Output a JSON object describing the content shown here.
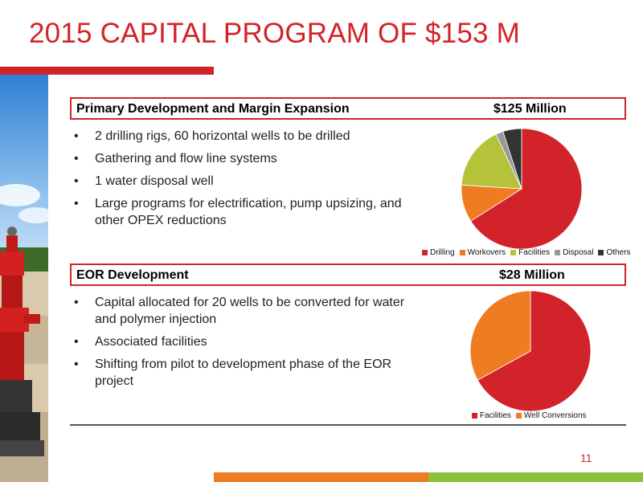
{
  "slide": {
    "title": "2015 CAPITAL PROGRAM OF $153 M",
    "page_number": "11"
  },
  "sections": [
    {
      "title": "Primary Development and Margin Expansion",
      "amount": "$125 Million",
      "bullets": [
        "2 drilling rigs, 60 horizontal wells to be drilled",
        "Gathering and flow line systems",
        "1 water disposal well",
        "Large programs for electrification, pump upsizing, and other OPEX reductions"
      ]
    },
    {
      "title": "EOR Development",
      "amount": "$28 Million",
      "bullets": [
        "Capital allocated for 20 wells to be converted for water and polymer injection",
        "Associated facilities",
        "Shifting from pilot to development phase of the EOR project"
      ]
    }
  ],
  "colors": {
    "brand_red": "#d3232a",
    "orange": "#f07c22",
    "green": "#8cc13f"
  },
  "chart_data": [
    {
      "type": "pie",
      "categories": [
        "Drilling",
        "Workovers",
        "Facilities",
        "Disposal",
        "Others"
      ],
      "values": [
        66,
        10,
        17,
        2,
        5
      ],
      "colors": [
        "#d3232a",
        "#f07c22",
        "#b5c33a",
        "#999999",
        "#333333"
      ],
      "legend": "bottom"
    },
    {
      "type": "pie",
      "categories": [
        "Facilities",
        "Well Conversions"
      ],
      "values": [
        67,
        33
      ],
      "colors": [
        "#d3232a",
        "#f07c22"
      ],
      "legend": "bottom"
    }
  ]
}
